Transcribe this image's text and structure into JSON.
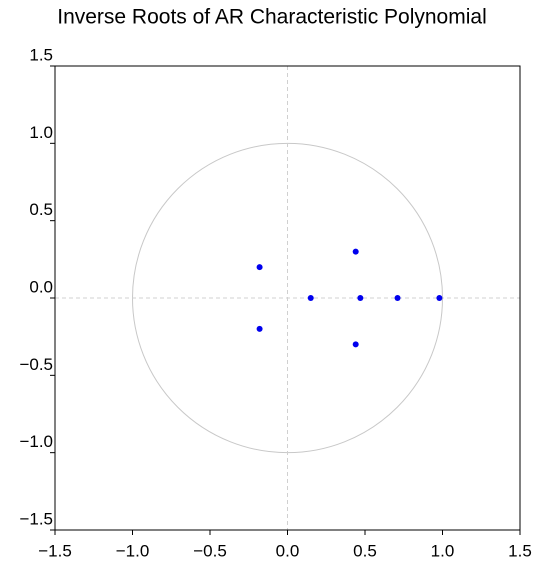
{
  "chart_data": {
    "type": "scatter",
    "title": "Inverse Roots of AR Characteristic Polynomial",
    "series": [
      {
        "color": "#0000ee",
        "x": [
          -0.18,
          -0.18,
          0.15,
          0.44,
          0.44,
          0.47,
          0.71,
          0.98
        ],
        "values": [
          0.2,
          -0.2,
          0.0,
          0.3,
          -0.3,
          0.0,
          0.0,
          0.0
        ]
      }
    ],
    "xlim": [
      -1.5,
      1.5
    ],
    "ylim": [
      -1.5,
      1.5
    ],
    "xticks": [
      {
        "value": -1.5,
        "label": "−1.5"
      },
      {
        "value": -1.0,
        "label": "−1.0"
      },
      {
        "value": -0.5,
        "label": "−0.5"
      },
      {
        "value": 0,
        "label": "0.0"
      },
      0.5,
      {
        "value": 1.0,
        "label": "1.0"
      },
      1.5
    ],
    "yticks": [
      {
        "value": -1.5,
        "label": "−1.5"
      },
      {
        "value": -1.0,
        "label": "−1.0"
      },
      {
        "value": -0.5,
        "label": "−0.5"
      },
      {
        "value": 0,
        "label": "0.0"
      },
      0.5,
      {
        "value": 1.0,
        "label": "1.0"
      },
      1.5
    ],
    "unit_circle": true,
    "zero_lines": true
  }
}
